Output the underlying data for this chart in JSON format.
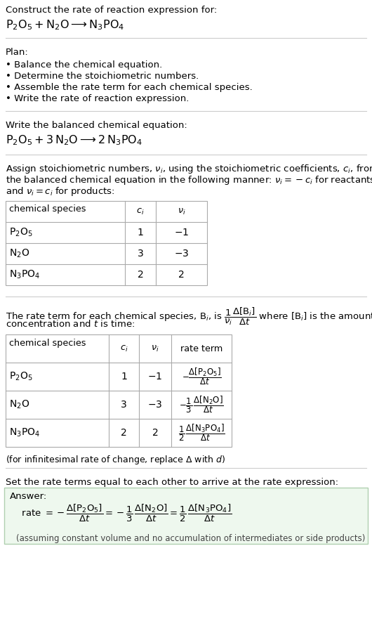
{
  "bg_color": "#ffffff",
  "title_text": "Construct the rate of reaction expression for:",
  "rxn_unbalanced": "$\\mathrm{P_2O_5 + N_2O \\longrightarrow N_3PO_4}$",
  "plan_header": "Plan:",
  "plan_items": [
    "• Balance the chemical equation.",
    "• Determine the stoichiometric numbers.",
    "• Assemble the rate term for each chemical species.",
    "• Write the rate of reaction expression."
  ],
  "balanced_header": "Write the balanced chemical equation:",
  "rxn_balanced": "$\\mathrm{P_2O_5 + 3\\,N_2O \\longrightarrow 2\\,N_3PO_4}$",
  "stoich_lines": [
    "Assign stoichiometric numbers, $\\nu_i$, using the stoichiometric coefficients, $c_i$, from",
    "the balanced chemical equation in the following manner: $\\nu_i = -c_i$ for reactants",
    "and $\\nu_i = c_i$ for products:"
  ],
  "t1_hdr": [
    "chemical species",
    "$c_i$",
    "$\\nu_i$"
  ],
  "t1_rows": [
    [
      "$\\mathrm{P_2O_5}$",
      "1",
      "$-1$"
    ],
    [
      "$\\mathrm{N_2O}$",
      "3",
      "$-3$"
    ],
    [
      "$\\mathrm{N_3PO_4}$",
      "2",
      "2"
    ]
  ],
  "rate_lines": [
    "The rate term for each chemical species, B$_i$, is $\\dfrac{1}{\\nu_i}\\dfrac{\\Delta[\\mathrm{B}_i]}{\\Delta t}$ where [B$_i$] is the amount",
    "concentration and $t$ is time:"
  ],
  "t2_hdr": [
    "chemical species",
    "$c_i$",
    "$\\nu_i$",
    "rate term"
  ],
  "t2_rows": [
    [
      "$\\mathrm{P_2O_5}$",
      "1",
      "$-1$",
      "$-\\dfrac{\\Delta[\\mathrm{P_2O_5}]}{\\Delta t}$"
    ],
    [
      "$\\mathrm{N_2O}$",
      "3",
      "$-3$",
      "$-\\dfrac{1}{3}\\,\\dfrac{\\Delta[\\mathrm{N_2O}]}{\\Delta t}$"
    ],
    [
      "$\\mathrm{N_3PO_4}$",
      "2",
      "2",
      "$\\dfrac{1}{2}\\,\\dfrac{\\Delta[\\mathrm{N_3PO_4}]}{\\Delta t}$"
    ]
  ],
  "inf_note": "(for infinitesimal rate of change, replace $\\Delta$ with $d$)",
  "ans_header": "Set the rate terms equal to each other to arrive at the rate expression:",
  "ans_label": "Answer:",
  "ans_rate": "    rate $= -\\dfrac{\\Delta[\\mathrm{P_2O_5}]}{\\Delta t} = -\\dfrac{1}{3}\\,\\dfrac{\\Delta[\\mathrm{N_2O}]}{\\Delta t} = \\dfrac{1}{2}\\,\\dfrac{\\Delta[\\mathrm{N_3PO_4}]}{\\Delta t}$",
  "ans_note": "    (assuming constant volume and no accumulation of intermediates or side products)",
  "ans_bg": "#eef8ee",
  "ans_border": "#b0d0b0",
  "line_color": "#cccccc",
  "table_line_color": "#aaaaaa"
}
